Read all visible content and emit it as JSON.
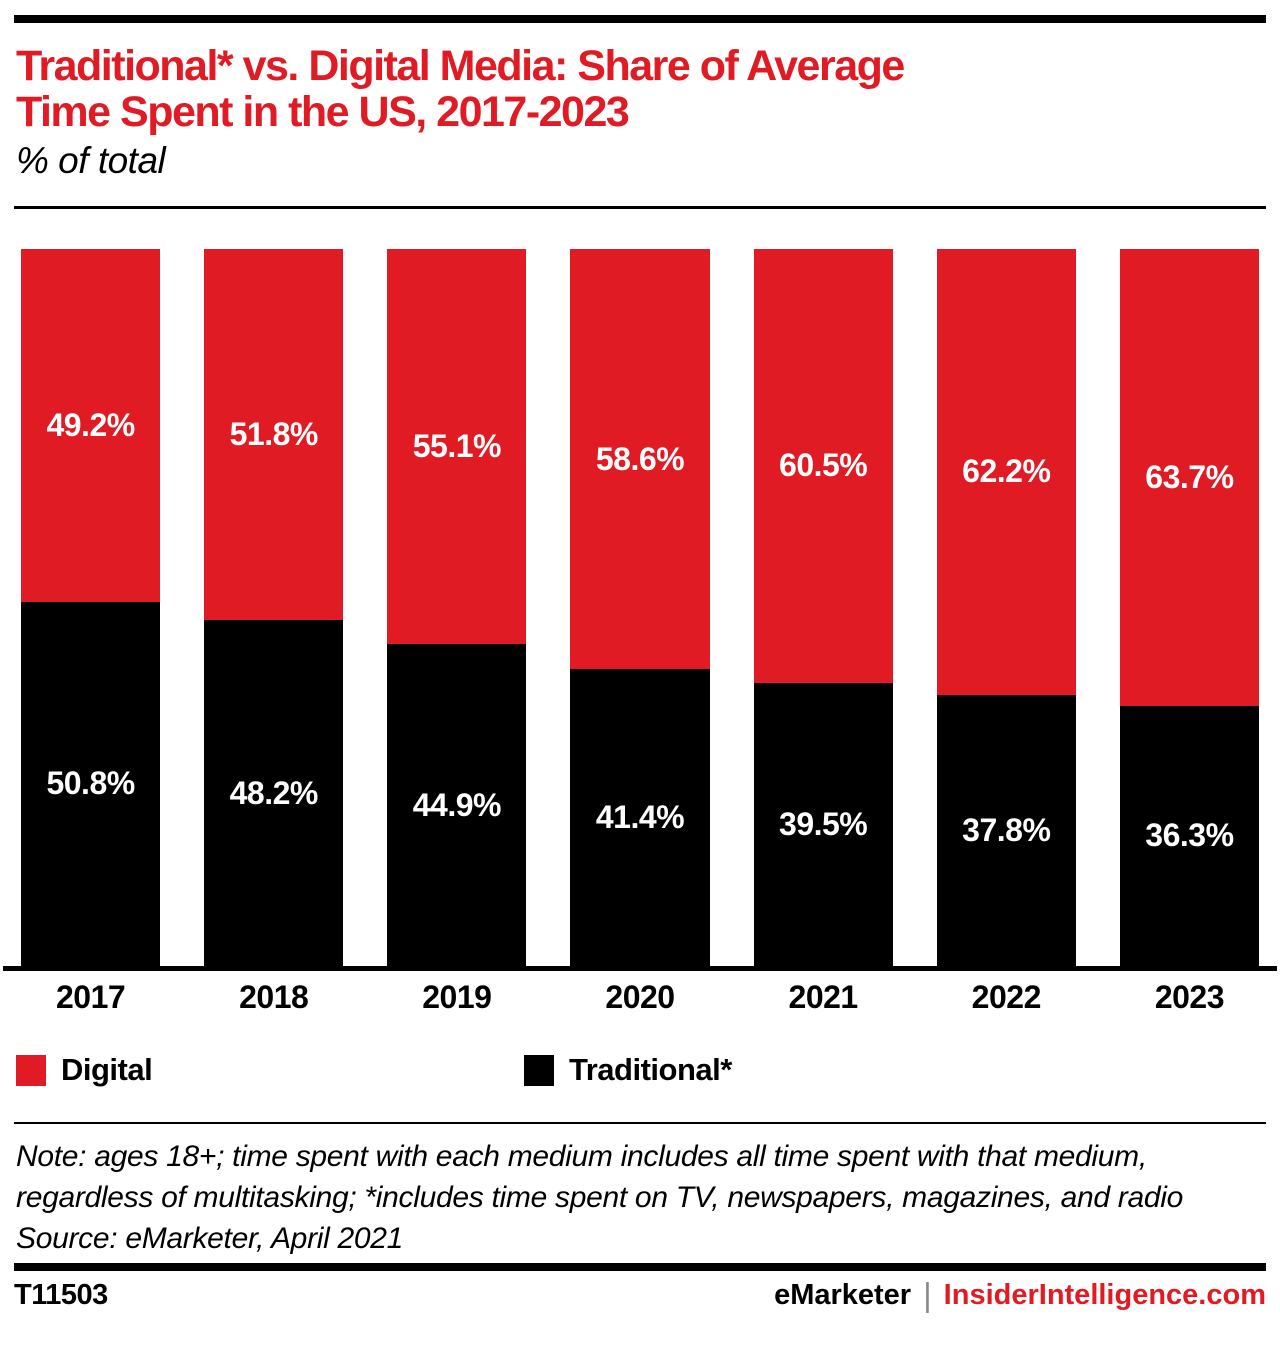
{
  "header": {
    "accent_color": "#e11b23",
    "title_line1": "Traditional* vs. Digital Media: Share of Average",
    "title_line2": "Time Spent in the US, 2017-2023",
    "subtitle": "% of total"
  },
  "chart_data": {
    "type": "bar",
    "stacked": true,
    "orientation": "vertical",
    "title": "Traditional* vs. Digital Media: Share of Average Time Spent in the US, 2017-2023",
    "subtitle": "% of total",
    "categories": [
      "2017",
      "2018",
      "2019",
      "2020",
      "2021",
      "2022",
      "2023"
    ],
    "series": [
      {
        "name": "Digital",
        "color": "#e11b23",
        "values": [
          49.2,
          51.8,
          55.1,
          58.6,
          60.5,
          62.2,
          63.7
        ]
      },
      {
        "name": "Traditional*",
        "color": "#000000",
        "values": [
          50.8,
          48.2,
          44.9,
          41.4,
          39.5,
          37.8,
          36.3
        ]
      }
    ],
    "value_suffix": "%",
    "value_label_color": "#ffffff",
    "ylim": [
      0,
      100
    ],
    "grid": false,
    "legend_position": "bottom"
  },
  "footer": {
    "note": "Note: ages 18+; time spent with each medium includes all time spent with that medium, regardless of multitasking; *includes time spent on TV, newspapers, magazines, and radio",
    "source": "Source: eMarketer, April 2021",
    "chart_id": "T11503",
    "brand_left": "eMarketer",
    "brand_separator": "|",
    "brand_right": "InsiderIntelligence.com"
  }
}
